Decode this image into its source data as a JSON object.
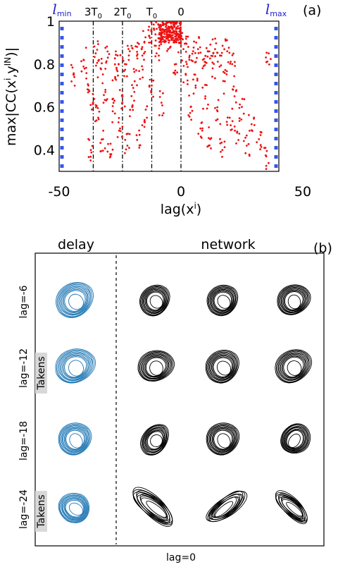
{
  "chart_data": [
    {
      "type": "scatter",
      "panel_label": "(a)",
      "xlabel": "lag(x",
      "xlabel_sup": "i",
      "xlabel_close": ")",
      "ylabel": "max|CC(x",
      "ylabel_sup1": "i",
      "ylabel_mid": ",y",
      "ylabel_sup2": "IN",
      "ylabel_close": ")|",
      "xlim": [
        -50,
        50
      ],
      "ylim": [
        0.3,
        1.0
      ],
      "xticks": [
        "-50",
        "0",
        "50"
      ],
      "yticks": [
        "0.4",
        "0.6",
        "0.8",
        "1"
      ],
      "ytick_values": [
        0.4,
        0.6,
        0.8,
        1.0
      ],
      "point_color": "#ee1111",
      "bound_color": "#3355ee",
      "vlines": [
        {
          "x": -36,
          "label": "3T",
          "sub": "0"
        },
        {
          "x": -24,
          "label": "2T",
          "sub": "0"
        },
        {
          "x": -12,
          "label": "T",
          "sub": "0"
        },
        {
          "x": 0,
          "label": "0",
          "sub": ""
        }
      ],
      "bounds": [
        {
          "x": -48,
          "label": "l",
          "sub": "min"
        },
        {
          "x": 37,
          "label": "l",
          "sub": "max"
        }
      ],
      "points": [
        [
          -44,
          0.75
        ],
        [
          -40,
          0.82
        ],
        [
          -38,
          0.7
        ],
        [
          -37,
          0.4
        ],
        [
          -36,
          0.62
        ],
        [
          -35,
          0.85
        ],
        [
          -34,
          0.55
        ],
        [
          -33,
          0.78
        ],
        [
          -32,
          0.45
        ],
        [
          -31,
          0.68
        ],
        [
          -30,
          0.83
        ],
        [
          -29,
          0.38
        ],
        [
          -28,
          0.58
        ],
        [
          -27,
          0.74
        ],
        [
          -26,
          0.84
        ],
        [
          -25,
          0.5
        ],
        [
          -24,
          0.65
        ],
        [
          -23,
          0.8
        ],
        [
          -22,
          0.42
        ],
        [
          -21,
          0.86
        ],
        [
          -20,
          0.6
        ],
        [
          -19,
          0.72
        ],
        [
          -18,
          0.88
        ],
        [
          -17,
          0.47
        ],
        [
          -16,
          0.79
        ],
        [
          -15,
          0.9
        ],
        [
          -14,
          0.55
        ],
        [
          -13,
          0.93
        ],
        [
          -12,
          0.7
        ],
        [
          -11,
          0.96
        ],
        [
          -10,
          0.85
        ],
        [
          -9,
          0.97
        ],
        [
          -8,
          0.62
        ],
        [
          -7,
          0.95
        ],
        [
          -6,
          0.98
        ],
        [
          -5,
          0.9
        ],
        [
          -4,
          0.97
        ],
        [
          -3,
          0.99
        ],
        [
          -2,
          0.8
        ],
        [
          -1,
          0.94
        ],
        [
          0,
          0.9
        ],
        [
          1,
          0.87
        ],
        [
          2,
          0.75
        ],
        [
          3,
          0.88
        ],
        [
          4,
          0.6
        ],
        [
          5,
          0.86
        ],
        [
          6,
          0.7
        ],
        [
          7,
          0.87
        ],
        [
          8,
          0.5
        ],
        [
          9,
          0.82
        ],
        [
          10,
          0.65
        ],
        [
          11,
          0.86
        ],
        [
          12,
          0.45
        ],
        [
          13,
          0.78
        ],
        [
          14,
          0.87
        ],
        [
          15,
          0.58
        ],
        [
          16,
          0.84
        ],
        [
          17,
          0.4
        ],
        [
          18,
          0.72
        ],
        [
          19,
          0.86
        ],
        [
          20,
          0.55
        ],
        [
          21,
          0.8
        ],
        [
          22,
          0.65
        ],
        [
          23,
          0.48
        ],
        [
          25,
          0.6
        ],
        [
          27,
          0.42
        ],
        [
          29,
          0.52
        ],
        [
          32,
          0.45
        ],
        [
          35,
          0.37
        ],
        [
          36,
          0.85
        ]
      ]
    }
  ],
  "panel_b": {
    "label": "(b)",
    "col_delay": "delay",
    "col_network": "network",
    "delay_color": "#1f77b4",
    "network_color": "#000000",
    "rows": [
      {
        "lag": "lag=-6",
        "tag": ""
      },
      {
        "lag": "lag=-12",
        "tag": "Takens"
      },
      {
        "lag": "lag=-18",
        "tag": ""
      },
      {
        "lag": "lag=-24",
        "tag": "Takens"
      }
    ],
    "bottom_label": "lag=0"
  }
}
